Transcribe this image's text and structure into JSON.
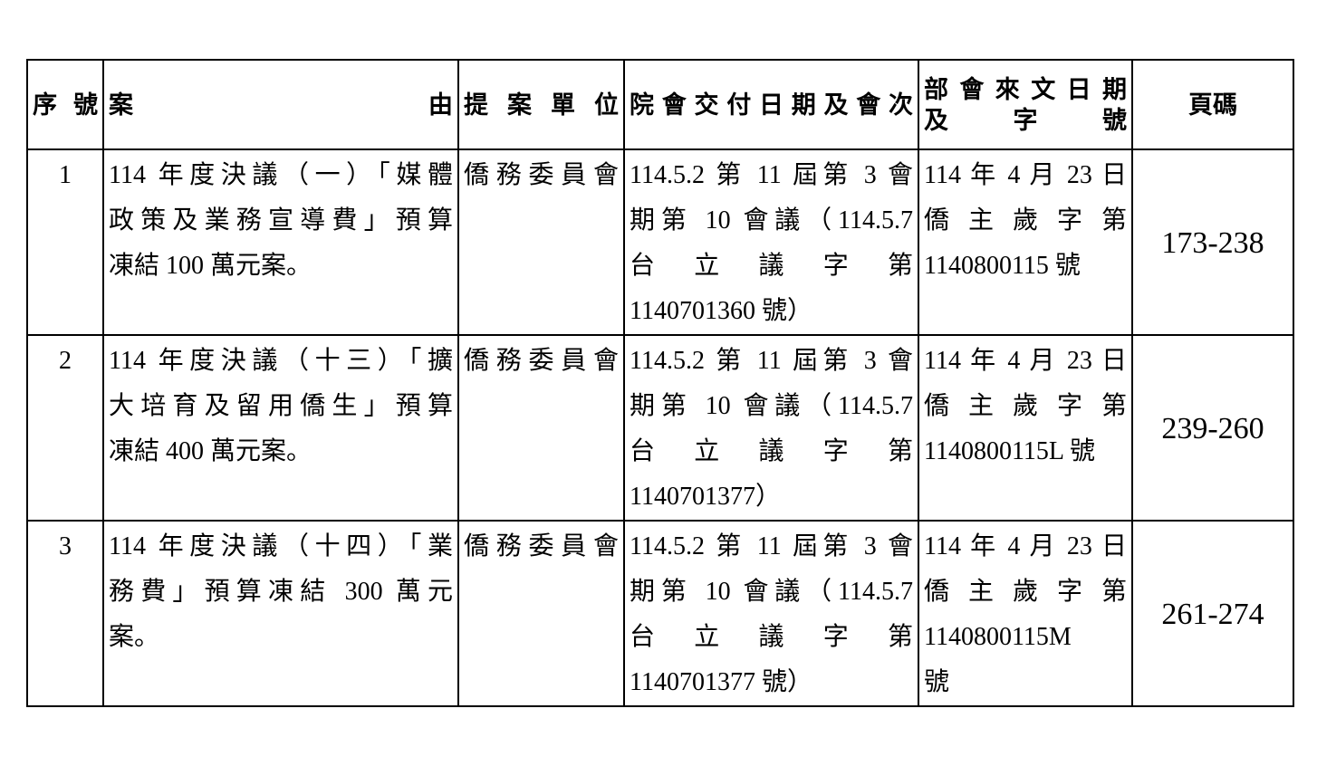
{
  "headers": {
    "seq": "序號",
    "case_left": "案",
    "case_right": "由",
    "unit": "提案單位",
    "session": "院會交付日期及會次",
    "doc_line1": "部會來文日期",
    "doc_line2": "及字號",
    "pages": "頁碼"
  },
  "rows": [
    {
      "seq": "1",
      "case": [
        "114 年度決議（一）「媒體",
        "政策及業務宣導費」預算",
        "凍結 100 萬元案。"
      ],
      "unit": "僑務委員會",
      "session": [
        "114.5.2 第 11 屆第 3 會",
        "期第 10 會議（114.5.7",
        "台 立 議 字 第",
        "1140701360 號）"
      ],
      "doc": [
        "114 年 4 月 23 日",
        "僑 主 歲 字 第",
        "1140800115 號"
      ],
      "pages": "173-238"
    },
    {
      "seq": "2",
      "case": [
        "114 年度決議（十三）「擴",
        "大培育及留用僑生」預算",
        "凍結 400 萬元案。"
      ],
      "unit": "僑務委員會",
      "session": [
        "114.5.2 第 11 屆第 3 會",
        "期第 10 會議（114.5.7",
        "台 立 議 字 第",
        "1140701377）"
      ],
      "doc": [
        "114 年 4 月 23 日",
        "僑 主 歲 字 第",
        "1140800115L 號"
      ],
      "pages": "239-260"
    },
    {
      "seq": "3",
      "case": [
        "114 年度決議（十四）「業",
        "務費」預算凍結 300 萬元",
        "案。"
      ],
      "unit": "僑務委員會",
      "session": [
        "114.5.2 第 11 屆第 3 會",
        "期第 10 會議（114.5.7",
        "台 立 議 字 第",
        "1140701377 號）"
      ],
      "doc": [
        "114 年 4 月 23 日",
        "僑 主 歲 字 第",
        "1140800115M",
        "號"
      ],
      "pages": "261-274"
    }
  ]
}
